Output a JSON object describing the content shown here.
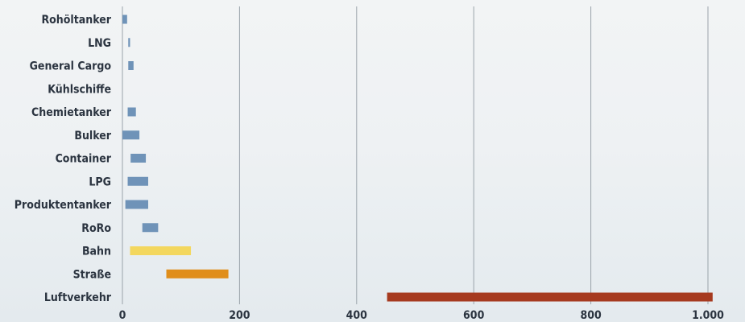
{
  "chart_data": {
    "type": "bar",
    "orientation": "horizontal",
    "title": "",
    "xlabel": "",
    "ylabel": "",
    "categories": [
      "Rohöltanker",
      "LNG",
      "General Cargo",
      "Kühlschiffe",
      "Chemietanker",
      "Bulker",
      "Container",
      "LPG",
      "Produktentanker",
      "RoRo",
      "Bahn",
      "Straße",
      "Luftverkehr"
    ],
    "ranges": [
      [
        0,
        8
      ],
      [
        10,
        13
      ],
      [
        10,
        19
      ],
      [
        0,
        0
      ],
      [
        9,
        23
      ],
      [
        0,
        29
      ],
      [
        14,
        40
      ],
      [
        9,
        44
      ],
      [
        5,
        44
      ],
      [
        34,
        61
      ],
      [
        13,
        117
      ],
      [
        75,
        181
      ],
      [
        452,
        1008
      ]
    ],
    "colors": [
      "#6f93b8",
      "#6f93b8",
      "#6f93b8",
      "#6f93b8",
      "#6f93b8",
      "#6f93b8",
      "#6f93b8",
      "#6f93b8",
      "#6f93b8",
      "#6f93b8",
      "#f3d75e",
      "#e08e1b",
      "#a63a1f"
    ],
    "xlim": [
      0,
      1000
    ],
    "xticks": [
      0,
      200,
      400,
      600,
      800,
      1000
    ],
    "xtick_labels": [
      "0",
      "200",
      "400",
      "600",
      "800",
      "1.000"
    ],
    "grid": true
  }
}
